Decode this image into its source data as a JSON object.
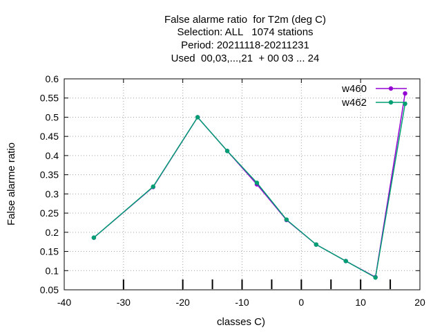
{
  "chart_data": {
    "type": "line",
    "title_lines": [
      "False alarme ratio  for T2m (deg C)",
      "Selection: ALL   1074 stations",
      "Period: 20211118-20211231",
      "Used  00,03,...,21  + 00 03 ... 24"
    ],
    "xlabel": "classes C)",
    "ylabel": "False alarme ratio",
    "xlim": [
      -40,
      20
    ],
    "ylim": [
      0.05,
      0.6
    ],
    "xticks": [
      "-40",
      "-30",
      "-20",
      "-10",
      "0",
      "10",
      "20"
    ],
    "xtick_values": [
      -40,
      -30,
      -20,
      -10,
      0,
      10,
      20
    ],
    "yticks": [
      "0.05",
      "0.1",
      "0.15",
      "0.2",
      "0.25",
      "0.3",
      "0.35",
      "0.4",
      "0.45",
      "0.5",
      "0.55",
      "0.6"
    ],
    "ytick_values": [
      0.05,
      0.1,
      0.15,
      0.2,
      0.25,
      0.3,
      0.35,
      0.4,
      0.45,
      0.5,
      0.55,
      0.6
    ],
    "class_boundary_ticks": [
      -30,
      -20,
      -15,
      -10,
      -5,
      0,
      5,
      10,
      15
    ],
    "grid": true,
    "legend_position": "top-right",
    "series": [
      {
        "name": "w460",
        "color": "#9400d3",
        "x": [
          -35,
          -25,
          -17.5,
          -12.5,
          -7.5,
          -2.5,
          2.5,
          7.5,
          12.5,
          17.5
        ],
        "y": [
          0.186,
          0.318,
          0.5,
          0.412,
          0.325,
          0.232,
          0.168,
          0.125,
          0.083,
          0.562
        ]
      },
      {
        "name": "w462",
        "color": "#009e73",
        "x": [
          -35,
          -25,
          -17.5,
          -12.5,
          -7.5,
          -2.5,
          2.5,
          7.5,
          12.5,
          17.5
        ],
        "y": [
          0.186,
          0.319,
          0.5,
          0.412,
          0.329,
          0.233,
          0.168,
          0.125,
          0.082,
          0.535
        ]
      }
    ]
  }
}
